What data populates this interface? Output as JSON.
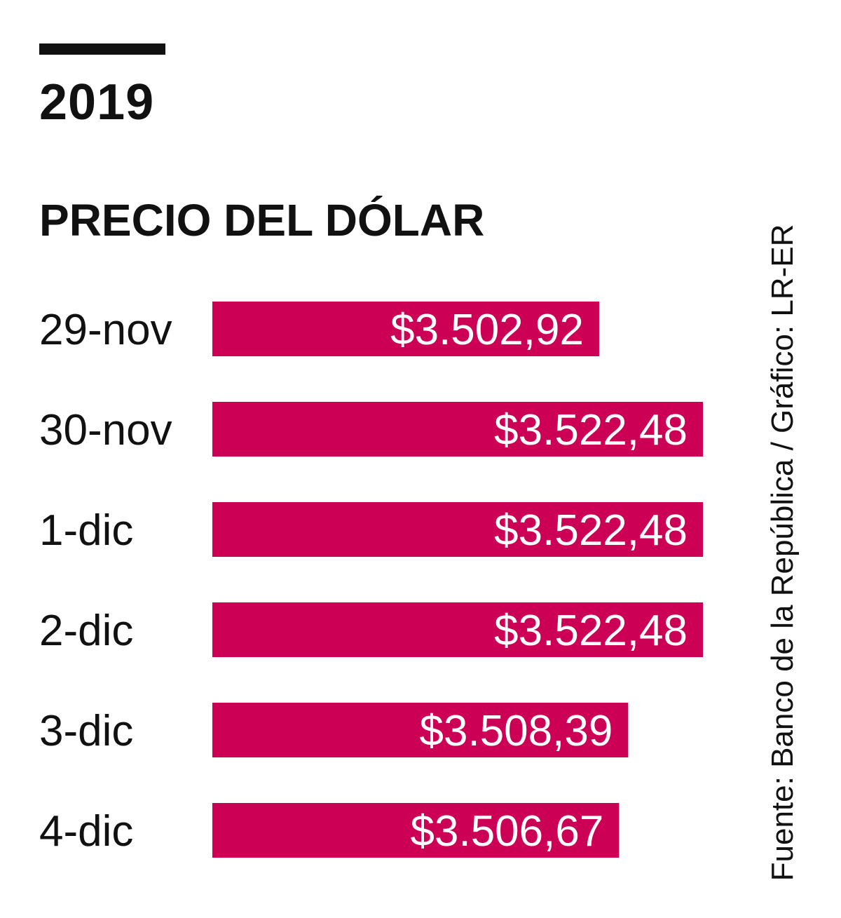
{
  "header": {
    "year": "2019",
    "title": "PRECIO DEL DÓLAR"
  },
  "source": "Fuente: Banco de la República / Gráfico: LR-ER",
  "colors": {
    "bar": "#cc0055",
    "text": "#111111",
    "bar_label": "#ffffff"
  },
  "chart_data": {
    "type": "bar",
    "orientation": "horizontal",
    "categories": [
      "29-nov",
      "30-nov",
      "1-dic",
      "2-dic",
      "3-dic",
      "4-dic"
    ],
    "values": [
      3502.92,
      3522.48,
      3522.48,
      3522.48,
      3508.39,
      3506.67
    ],
    "data_labels": [
      "$3.502,92",
      "$3.522,48",
      "$3.522,48",
      "$3.522,48",
      "$3.508,39",
      "$3.506,67"
    ],
    "title": "PRECIO DEL DÓLAR",
    "xlabel": "",
    "ylabel": "",
    "grid": false,
    "legend": "none"
  }
}
